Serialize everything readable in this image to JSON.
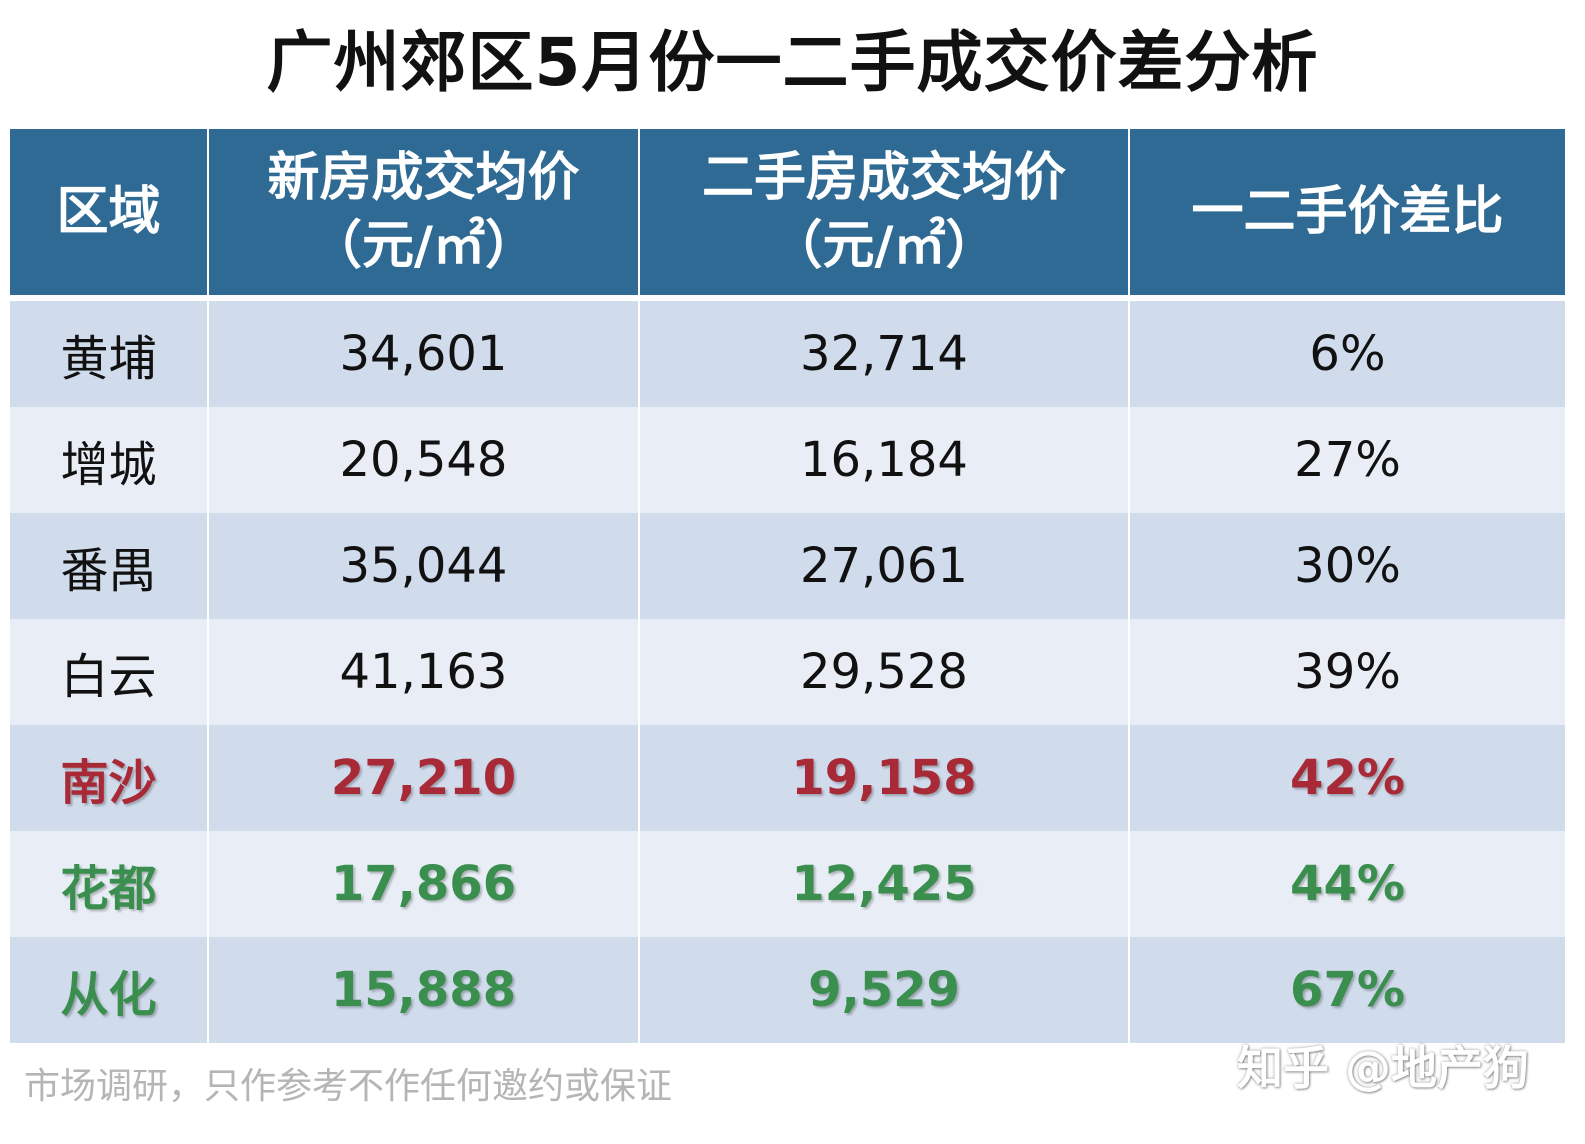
{
  "title": "广州郊区5月份一二手成交价差分析",
  "table": {
    "headers": [
      {
        "line1": "区域",
        "line2": ""
      },
      {
        "line1": "新房成交均价",
        "line2": "（元/㎡）"
      },
      {
        "line1": "二手房成交均价",
        "line2": "（元/㎡）"
      },
      {
        "line1": "一二手价差比",
        "line2": ""
      }
    ],
    "rows": [
      {
        "district": "黄埔",
        "new_price": "34,601",
        "second_price": "32,714",
        "diff": "6%",
        "highlight": "none"
      },
      {
        "district": "增城",
        "new_price": "20,548",
        "second_price": "16,184",
        "diff": "27%",
        "highlight": "none"
      },
      {
        "district": "番禺",
        "new_price": "35,044",
        "second_price": "27,061",
        "diff": "30%",
        "highlight": "none"
      },
      {
        "district": "白云",
        "new_price": "41,163",
        "second_price": "29,528",
        "diff": "39%",
        "highlight": "none"
      },
      {
        "district": "南沙",
        "new_price": "27,210",
        "second_price": "19,158",
        "diff": "42%",
        "highlight": "red"
      },
      {
        "district": "花都",
        "new_price": "17,866",
        "second_price": "12,425",
        "diff": "44%",
        "highlight": "green"
      },
      {
        "district": "从化",
        "new_price": "15,888",
        "second_price": "9,529",
        "diff": "67%",
        "highlight": "green"
      }
    ]
  },
  "footer_note": "市场调研，只作参考不作任何邀约或保证",
  "watermark": "知乎 @地产狗",
  "colors": {
    "header_bg": "#2e6a93",
    "row_odd": "#d0dbec",
    "row_even": "#e9eef6",
    "highlight_red": "#a82a37",
    "highlight_green": "#3a8f4f"
  },
  "chart_data": {
    "type": "table",
    "title": "广州郊区5月份一二手成交价差分析",
    "columns": [
      "区域",
      "新房成交均价（元/㎡）",
      "二手房成交均价（元/㎡）",
      "一二手价差比"
    ],
    "categories": [
      "黄埔",
      "增城",
      "番禺",
      "白云",
      "南沙",
      "花都",
      "从化"
    ],
    "series": [
      {
        "name": "新房成交均价（元/㎡）",
        "values": [
          34601,
          20548,
          35044,
          41163,
          27210,
          17866,
          15888
        ]
      },
      {
        "name": "二手房成交均价（元/㎡）",
        "values": [
          32714,
          16184,
          27061,
          29528,
          19158,
          12425,
          9529
        ]
      },
      {
        "name": "一二手价差比",
        "values": [
          6,
          27,
          30,
          39,
          42,
          44,
          67
        ]
      }
    ]
  }
}
